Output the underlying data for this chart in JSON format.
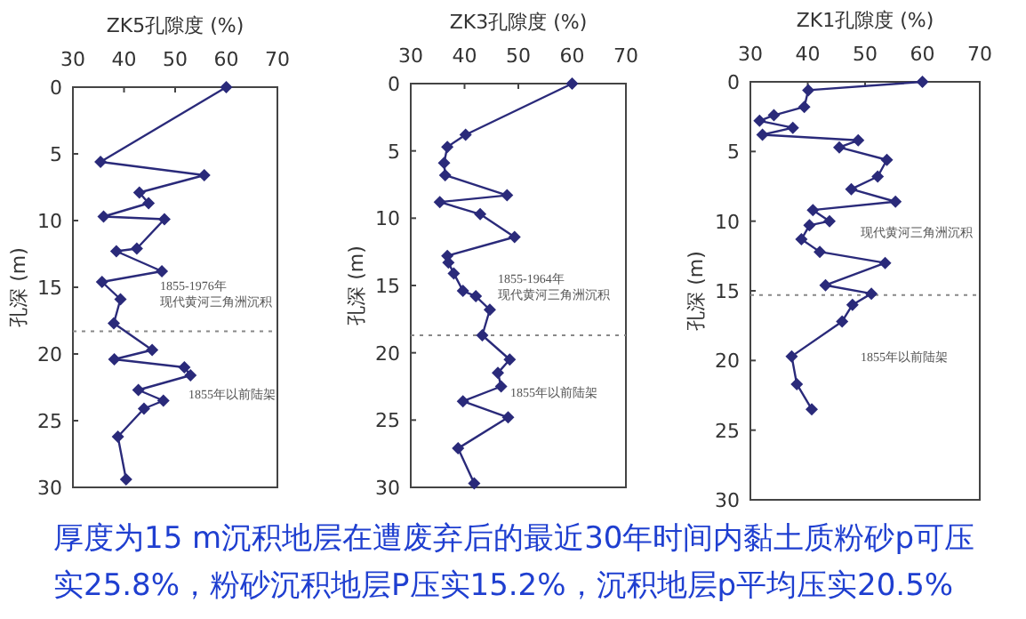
{
  "chart_data": [
    {
      "type": "line",
      "xlabel": "ZK5孔隙度 (%)",
      "ylabel": "孔深 (m)",
      "xlim": [
        30,
        70
      ],
      "xticks": [
        30,
        40,
        50,
        60,
        70
      ],
      "ylim": [
        30,
        0
      ],
      "yticks": [
        0,
        5,
        10,
        15,
        20,
        25,
        30
      ],
      "marker": "diamond",
      "line_style": "solid",
      "grid": false,
      "series": [
        {
          "color": "#2a2a7a",
          "x": [
            60,
            35.4,
            55.7,
            43.0,
            44.8,
            36.0,
            47.9,
            42.5,
            38.5,
            47.4,
            35.7,
            39.3,
            38.0,
            45.5,
            38.1,
            51.8,
            53.0,
            42.8,
            47.7,
            43.9,
            38.8,
            40.4
          ],
          "values": [
            0,
            5.6,
            6.6,
            7.9,
            8.7,
            9.7,
            9.9,
            12.1,
            12.3,
            13.8,
            14.6,
            15.9,
            17.7,
            19.7,
            20.4,
            21.0,
            21.6,
            22.7,
            23.5,
            24.1,
            26.2,
            29.4
          ]
        }
      ],
      "ref_lines": [
        {
          "axis": "y",
          "value": 18.3,
          "color": "#888888",
          "line_style": "dotted"
        }
      ],
      "annotations": [
        "1855-1976年",
        "现代黄河三角洲沉积",
        "1855年以前陆架",
        "厚度为15 m沉积地层在遭废弃后的最近30年时间内黏土质粉砂p可压实25.8%，粉砂沉积地层P压实15.2%，沉积地层p平均压实20.5%"
      ]
    },
    {
      "type": "line",
      "xlabel": "ZK3孔隙度 (%)",
      "ylabel": "孔深 (m)",
      "xlim": [
        30,
        70
      ],
      "xticks": [
        30,
        40,
        50,
        60,
        70
      ],
      "ylim": [
        30,
        0
      ],
      "yticks": [
        0,
        5,
        10,
        15,
        20,
        25,
        30
      ],
      "marker": "diamond",
      "line_style": "solid",
      "grid": false,
      "series": [
        {
          "color": "#2a2a7a",
          "x": [
            60,
            40.2,
            36.8,
            36.2,
            36.4,
            47.9,
            35.4,
            42.9,
            49.3,
            36.8,
            37.0,
            38.0,
            39.7,
            42.1,
            44.7,
            43.3,
            48.4,
            46.2,
            46.8,
            39.7,
            48.1,
            38.8,
            41.8
          ],
          "values": [
            0,
            3.8,
            4.7,
            5.9,
            6.8,
            8.3,
            8.8,
            9.7,
            11.4,
            12.8,
            13.3,
            14.1,
            15.4,
            15.8,
            16.8,
            18.7,
            20.5,
            21.5,
            22.5,
            23.6,
            24.8,
            27.1,
            29.7
          ]
        }
      ],
      "ref_lines": [
        {
          "axis": "y",
          "value": 18.7,
          "color": "#888888",
          "line_style": "dotted"
        }
      ],
      "annotations": [
        "1855-1964年",
        "现代黄河三角洲沉积",
        "1855年以前陆架"
      ]
    },
    {
      "type": "line",
      "xlabel": "ZK1孔隙度 (%)",
      "ylabel": "孔深 (m)",
      "xlim": [
        30,
        70
      ],
      "xticks": [
        30,
        40,
        50,
        60,
        70
      ],
      "ylim": [
        30,
        0
      ],
      "yticks": [
        0,
        5,
        10,
        15,
        20,
        25,
        30
      ],
      "marker": "diamond",
      "line_style": "solid",
      "grid": false,
      "series": [
        {
          "color": "#2a2a7a",
          "x": [
            60,
            40.1,
            39.4,
            34.1,
            31.6,
            37.4,
            32.1,
            48.8,
            45.5,
            53.8,
            52.2,
            47.6,
            55.3,
            40.9,
            43.8,
            40.3,
            38.9,
            42.1,
            53.5,
            43.1,
            51.1,
            47.8,
            46.0,
            37.2,
            38.1,
            40.7
          ],
          "values": [
            0,
            0.6,
            1.8,
            2.4,
            2.8,
            3.3,
            3.8,
            4.2,
            4.7,
            5.6,
            6.8,
            7.7,
            8.6,
            9.2,
            10.0,
            10.3,
            11.3,
            12.2,
            13.0,
            14.6,
            15.2,
            16.0,
            17.2,
            19.7,
            21.7,
            23.5
          ]
        }
      ],
      "ref_lines": [
        {
          "axis": "y",
          "value": 15.3,
          "color": "#888888",
          "line_style": "dotted"
        }
      ],
      "annotations": [
        "现代黄河三角洲沉积",
        "1855年以前陆架"
      ]
    }
  ]
}
